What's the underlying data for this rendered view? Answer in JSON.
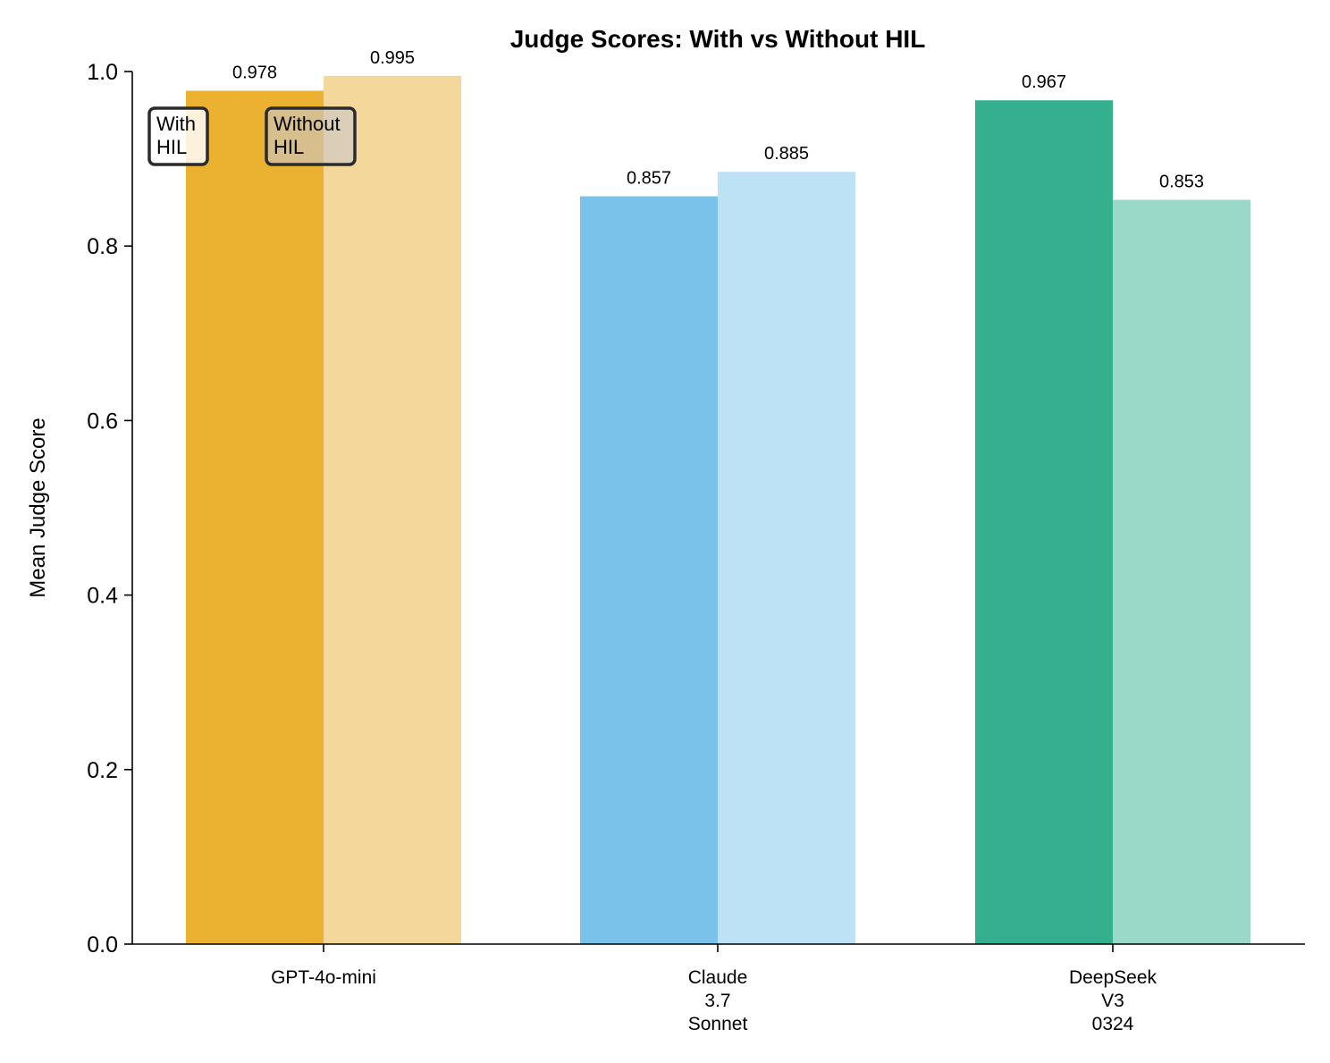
{
  "chart_data": {
    "type": "bar",
    "title": "Judge Scores: With vs Without HIL",
    "xlabel": "",
    "ylabel": "Mean Judge Score",
    "ylim": [
      0,
      1.0
    ],
    "yticks": [
      "0.0",
      "0.2",
      "0.4",
      "0.6",
      "0.8",
      "1.0"
    ],
    "categories": [
      [
        "GPT-4o-mini"
      ],
      [
        "Claude",
        "3.7",
        "Sonnet"
      ],
      [
        "DeepSeek",
        "V3",
        "0324"
      ]
    ],
    "series": [
      {
        "name": "With HIL",
        "legend_lines": [
          "With",
          "HIL"
        ],
        "values": [
          0.978,
          0.857,
          0.967
        ],
        "labels": [
          "0.978",
          "0.857",
          "0.967"
        ],
        "colors": [
          "#ebb232",
          "#7bc2eb",
          "#34b08f"
        ]
      },
      {
        "name": "Without HIL",
        "legend_lines": [
          "Without",
          "HIL"
        ],
        "values": [
          0.995,
          0.885,
          0.853
        ],
        "labels": [
          "0.995",
          "0.885",
          "0.853"
        ],
        "colors": [
          "#f4d89b",
          "#bde1f5",
          "#9ad9c7"
        ]
      }
    ],
    "grid": false,
    "legend_position": "top-left"
  }
}
